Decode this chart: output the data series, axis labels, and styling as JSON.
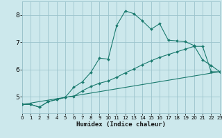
{
  "xlabel": "Humidex (Indice chaleur)",
  "background_color": "#cce8ec",
  "grid_color": "#9bc4cc",
  "line_color": "#1a7a6e",
  "xlim": [
    0,
    23
  ],
  "ylim": [
    4.4,
    8.5
  ],
  "xticks": [
    0,
    1,
    2,
    3,
    4,
    5,
    6,
    7,
    8,
    9,
    10,
    11,
    12,
    13,
    14,
    15,
    16,
    17,
    18,
    19,
    20,
    21,
    22,
    23
  ],
  "yticks": [
    5,
    6,
    7,
    8
  ],
  "series": [
    {
      "x": [
        0,
        1,
        2,
        3,
        4,
        5,
        6,
        7,
        8,
        9,
        10,
        11,
        12,
        13,
        14,
        15,
        16,
        17,
        18,
        19,
        20,
        21,
        22,
        23
      ],
      "y": [
        4.72,
        4.72,
        4.62,
        4.82,
        4.9,
        4.98,
        5.35,
        5.55,
        5.9,
        6.42,
        6.38,
        7.62,
        8.15,
        8.05,
        7.78,
        7.48,
        7.68,
        7.08,
        7.05,
        7.02,
        6.88,
        6.35,
        6.15,
        5.92
      ],
      "has_markers": true
    },
    {
      "x": [
        0,
        1,
        2,
        3,
        4,
        5,
        6,
        7,
        8,
        9,
        10,
        11,
        12,
        13,
        14,
        15,
        16,
        17,
        18,
        19,
        20,
        21,
        22,
        23
      ],
      "y": [
        4.72,
        4.72,
        4.62,
        4.82,
        4.9,
        4.98,
        5.02,
        5.22,
        5.38,
        5.5,
        5.58,
        5.72,
        5.88,
        6.02,
        6.18,
        6.32,
        6.45,
        6.55,
        6.65,
        6.75,
        6.85,
        6.85,
        5.92,
        5.92
      ],
      "has_markers": true
    },
    {
      "x": [
        0,
        23
      ],
      "y": [
        4.72,
        5.92
      ],
      "has_markers": false
    }
  ]
}
